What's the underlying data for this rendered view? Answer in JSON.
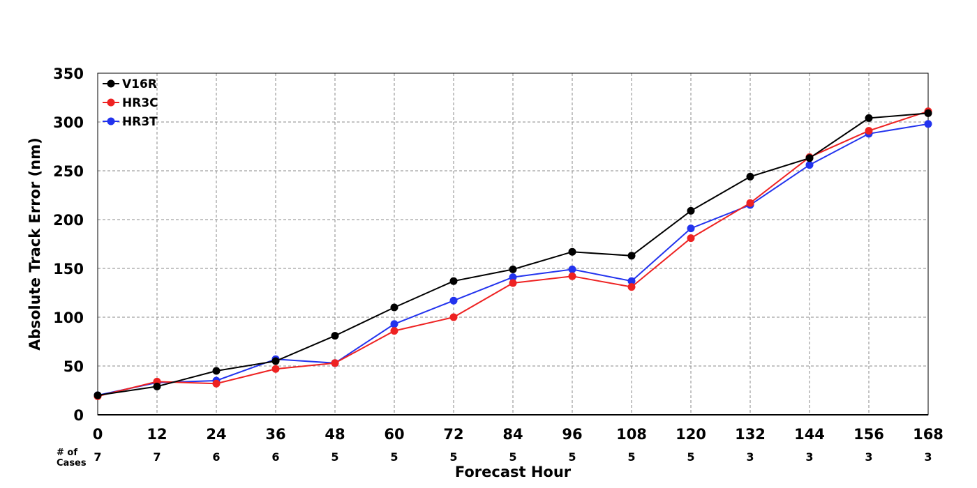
{
  "chart_data": {
    "type": "line",
    "xlabel": "Forecast Hour",
    "ylabel": "Absolute Track Error (nm)",
    "x": [
      0,
      12,
      24,
      36,
      48,
      60,
      72,
      84,
      96,
      108,
      120,
      132,
      144,
      156,
      168
    ],
    "xlim": [
      0,
      168
    ],
    "ylim": [
      0,
      350
    ],
    "yticks": [
      0,
      50,
      100,
      150,
      200,
      250,
      300,
      350
    ],
    "grid": true,
    "legend_position": "top-left",
    "cases_label": "# of\nCases",
    "cases": [
      "7",
      "7",
      "6",
      "6",
      "5",
      "5",
      "5",
      "5",
      "5",
      "5",
      "5",
      "3",
      "3",
      "3",
      "3"
    ],
    "series": [
      {
        "name": "V16R",
        "color": "#000000",
        "values": [
          20,
          29,
          45,
          55,
          81,
          110,
          137,
          149,
          167,
          163,
          209,
          244,
          263,
          304,
          309
        ]
      },
      {
        "name": "HR3C",
        "color": "#ee2222",
        "values": [
          19,
          34,
          32,
          47,
          53,
          86,
          100,
          135,
          142,
          131,
          181,
          217,
          264,
          291,
          311
        ]
      },
      {
        "name": "HR3T",
        "color": "#2233ee",
        "values": [
          20,
          33,
          35,
          57,
          53,
          93,
          117,
          141,
          149,
          137,
          191,
          215,
          256,
          288,
          298
        ]
      }
    ]
  }
}
